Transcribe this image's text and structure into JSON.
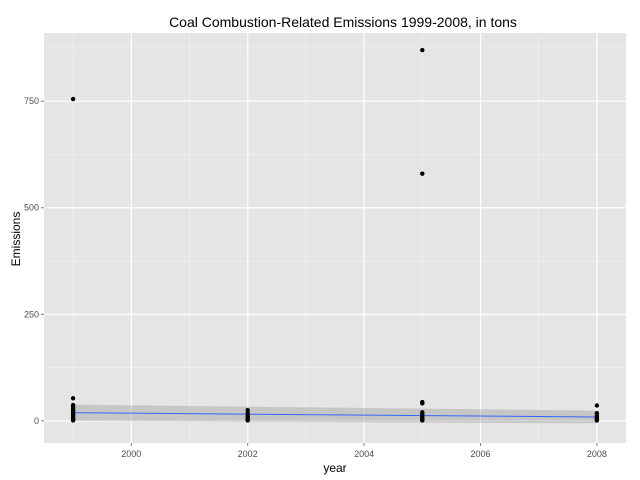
{
  "chart_data": {
    "type": "scatter",
    "title": "Coal Combustion-Related Emissions 1999-2008, in tons",
    "xlabel": "year",
    "ylabel": "Emissions",
    "xlim": [
      1998.5,
      2008.5
    ],
    "ylim": [
      -52,
      910
    ],
    "x_ticks": [
      2000,
      2002,
      2004,
      2006,
      2008
    ],
    "y_ticks": [
      0,
      250,
      500,
      750
    ],
    "x_tick_labels": [
      "2000",
      "2002",
      "2004",
      "2006",
      "2008"
    ],
    "y_tick_labels": [
      "0",
      "250",
      "500",
      "750"
    ],
    "grid": true,
    "colors": {
      "panel": "#e5e5e5",
      "grid_major": "#ffffff",
      "grid_minor": "#f2f2f2",
      "point": "#000000",
      "smooth_line": "#3366ff",
      "confidence_band": "#999999"
    },
    "points": [
      {
        "x": 1999,
        "y": 755
      },
      {
        "x": 1999,
        "y": 53
      },
      {
        "x": 1999,
        "y": 37
      },
      {
        "x": 1999,
        "y": 33
      },
      {
        "x": 1999,
        "y": 29
      },
      {
        "x": 1999,
        "y": 25
      },
      {
        "x": 1999,
        "y": 22
      },
      {
        "x": 1999,
        "y": 18
      },
      {
        "x": 1999,
        "y": 15
      },
      {
        "x": 1999,
        "y": 12
      },
      {
        "x": 1999,
        "y": 9
      },
      {
        "x": 1999,
        "y": 6
      },
      {
        "x": 1999,
        "y": 4
      },
      {
        "x": 1999,
        "y": 2
      },
      {
        "x": 1999,
        "y": 1
      },
      {
        "x": 2002,
        "y": 25
      },
      {
        "x": 2002,
        "y": 18
      },
      {
        "x": 2002,
        "y": 12
      },
      {
        "x": 2002,
        "y": 8
      },
      {
        "x": 2002,
        "y": 5
      },
      {
        "x": 2002,
        "y": 3
      },
      {
        "x": 2002,
        "y": 1
      },
      {
        "x": 2005,
        "y": 870
      },
      {
        "x": 2005,
        "y": 580
      },
      {
        "x": 2005,
        "y": 44
      },
      {
        "x": 2005,
        "y": 41
      },
      {
        "x": 2005,
        "y": 20
      },
      {
        "x": 2005,
        "y": 15
      },
      {
        "x": 2005,
        "y": 10
      },
      {
        "x": 2005,
        "y": 7
      },
      {
        "x": 2005,
        "y": 4
      },
      {
        "x": 2005,
        "y": 2
      },
      {
        "x": 2005,
        "y": 1
      },
      {
        "x": 2008,
        "y": 36
      },
      {
        "x": 2008,
        "y": 18
      },
      {
        "x": 2008,
        "y": 12
      },
      {
        "x": 2008,
        "y": 8
      },
      {
        "x": 2008,
        "y": 5
      },
      {
        "x": 2008,
        "y": 3
      },
      {
        "x": 2008,
        "y": 1
      }
    ],
    "smooth": {
      "method": "linear",
      "x": [
        1999,
        2008
      ],
      "y": [
        19,
        9
      ],
      "band_lower": [
        0,
        -6
      ],
      "band_upper": [
        38,
        24
      ]
    }
  }
}
